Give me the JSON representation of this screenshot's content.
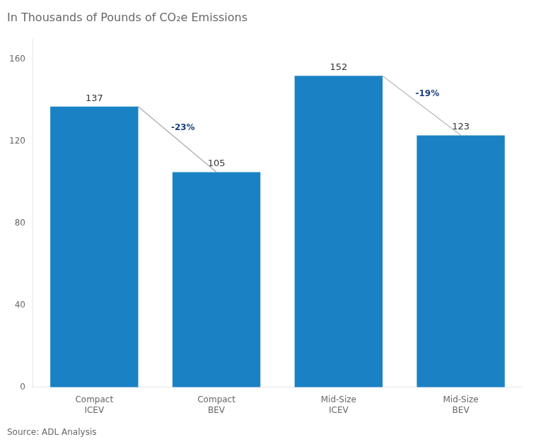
{
  "chart_data": {
    "type": "bar",
    "title": "In Thousands of Pounds of CO₂e Emissions",
    "categories": [
      "Compact\nICEV",
      "Compact\nBEV",
      "Mid-Size\nICEV",
      "Mid-Size\nBEV"
    ],
    "values": [
      137,
      105,
      152,
      123
    ],
    "color": "#1a82c4",
    "ylim": [
      0,
      170
    ],
    "yticks": [
      0,
      40,
      80,
      120,
      160
    ],
    "grid": false,
    "data_labels": true,
    "annotations": [
      {
        "text": "-23%",
        "from": "Compact\nICEV",
        "to": "Compact\nBEV"
      },
      {
        "text": "-19%",
        "from": "Mid-Size\nICEV",
        "to": "Mid-Size\nBEV"
      }
    ],
    "source": "Source: ADL Analysis"
  }
}
